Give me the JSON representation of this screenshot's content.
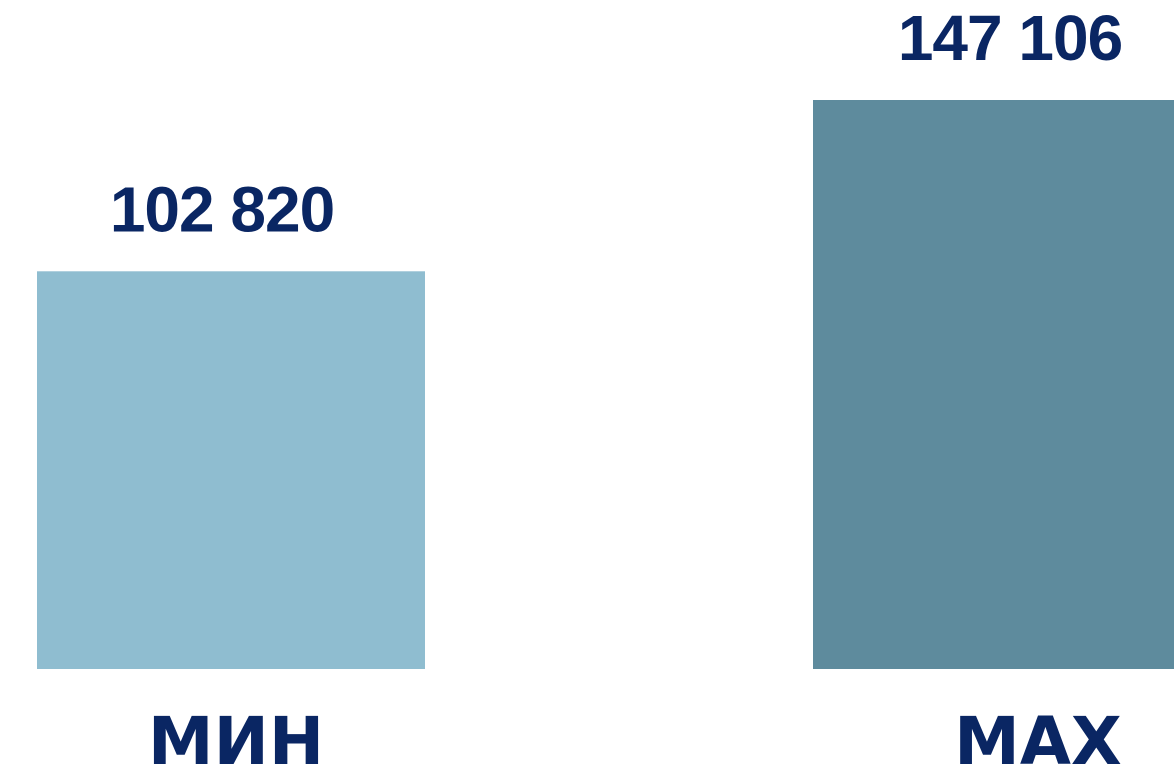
{
  "chart_data": {
    "type": "bar",
    "categories": [
      "МИН",
      "МАХ"
    ],
    "values": [
      102820,
      147106
    ],
    "value_labels": [
      "102 820",
      "147 106"
    ],
    "colors": {
      "bars": [
        "#8fbdd0",
        "#5e8b9d"
      ],
      "value_text": "#0a2663",
      "category_text": "#0a2663"
    },
    "grid": false,
    "legend": "none"
  }
}
